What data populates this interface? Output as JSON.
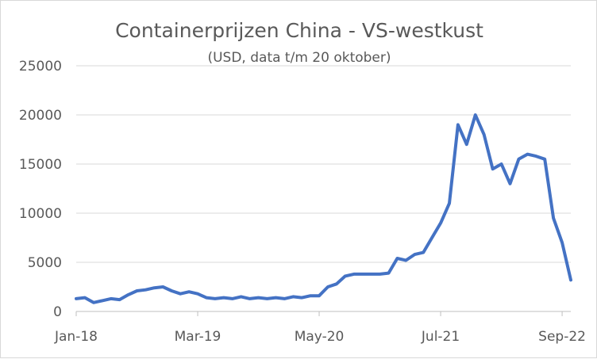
{
  "chart_data": {
    "type": "line",
    "title": "Containerprijzen China - VS-westkust",
    "subtitle": "(USD, data t/m 20 oktober)",
    "xlabel": "",
    "ylabel": "",
    "ylim": [
      0,
      25000
    ],
    "xlim": [
      "2018-01",
      "2022-10"
    ],
    "y_ticks": [
      "0",
      "5000",
      "10000",
      "15000",
      "20000",
      "25000"
    ],
    "x_ticks": [
      {
        "label": "Jan-18",
        "date": "2018-01"
      },
      {
        "label": "Mar-19",
        "date": "2019-03"
      },
      {
        "label": "May-20",
        "date": "2020-05"
      },
      {
        "label": "Jul-21",
        "date": "2021-07"
      },
      {
        "label": "Sep-22",
        "date": "2022-09"
      }
    ],
    "grid": "horizontal",
    "legend": "none",
    "line_color": "#4472c4",
    "series": [
      {
        "x": [
          "2018-01",
          "2018-02",
          "2018-03",
          "2018-04",
          "2018-05",
          "2018-06",
          "2018-07",
          "2018-08",
          "2018-09",
          "2018-10",
          "2018-11",
          "2018-12",
          "2019-01",
          "2019-02",
          "2019-03",
          "2019-04",
          "2019-05",
          "2019-06",
          "2019-07",
          "2019-08",
          "2019-09",
          "2019-10",
          "2019-11",
          "2019-12",
          "2020-01",
          "2020-02",
          "2020-03",
          "2020-04",
          "2020-05",
          "2020-06",
          "2020-07",
          "2020-08",
          "2020-09",
          "2020-10",
          "2020-11",
          "2020-12",
          "2021-01",
          "2021-02",
          "2021-03",
          "2021-04",
          "2021-05",
          "2021-06",
          "2021-07",
          "2021-08",
          "2021-09",
          "2021-10",
          "2021-11",
          "2021-12",
          "2022-01",
          "2022-02",
          "2022-03",
          "2022-04",
          "2022-05",
          "2022-06",
          "2022-07",
          "2022-08",
          "2022-09",
          "2022-10"
        ],
        "values": [
          1300,
          1400,
          900,
          1100,
          1300,
          1200,
          1700,
          2100,
          2200,
          2400,
          2500,
          2100,
          1800,
          2000,
          1800,
          1400,
          1300,
          1400,
          1300,
          1500,
          1300,
          1400,
          1300,
          1400,
          1300,
          1500,
          1400,
          1600,
          1600,
          2500,
          2800,
          3600,
          3800,
          3800,
          3800,
          3800,
          3900,
          5400,
          5200,
          5800,
          6000,
          7500,
          9000,
          11000,
          19000,
          17000,
          20000,
          18000,
          14500,
          15000,
          13000,
          15500,
          16000,
          15800,
          15500,
          9500,
          7000,
          3200
        ],
        "note": ""
      }
    ]
  }
}
